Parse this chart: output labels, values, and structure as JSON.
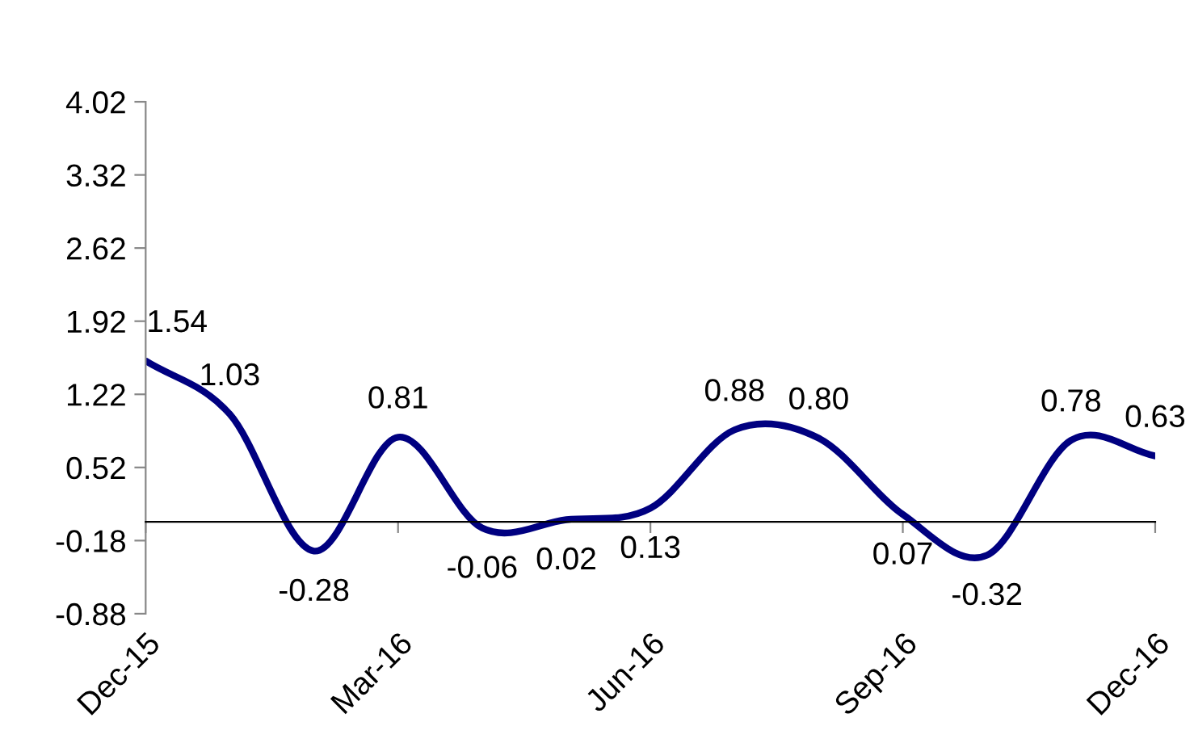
{
  "chart_data": {
    "type": "line",
    "categories": [
      "Dec-15",
      null,
      null,
      "Mar-16",
      null,
      null,
      "Jun-16",
      null,
      null,
      "Sep-16",
      null,
      null,
      "Dec-16"
    ],
    "series": [
      {
        "color": "#000080",
        "values": [
          1.54,
          1.03,
          -0.28,
          0.81,
          -0.06,
          0.02,
          0.13,
          0.88,
          0.8,
          0.07,
          -0.32,
          0.78,
          0.63
        ],
        "value_labels": [
          "1.54",
          "1.03",
          "-0.28",
          "0.81",
          "-0.06",
          "0.02",
          "0.13",
          "0.88",
          "0.80",
          "0.07",
          "-0.32",
          "0.78",
          "0.63"
        ]
      }
    ],
    "ylim": [
      -0.88,
      4.02
    ],
    "yticks": [
      -0.88,
      -0.18,
      0.52,
      1.22,
      1.92,
      2.62,
      3.32,
      4.02
    ],
    "grid": false,
    "legend": false,
    "marker": "none",
    "line_style": "solid"
  }
}
